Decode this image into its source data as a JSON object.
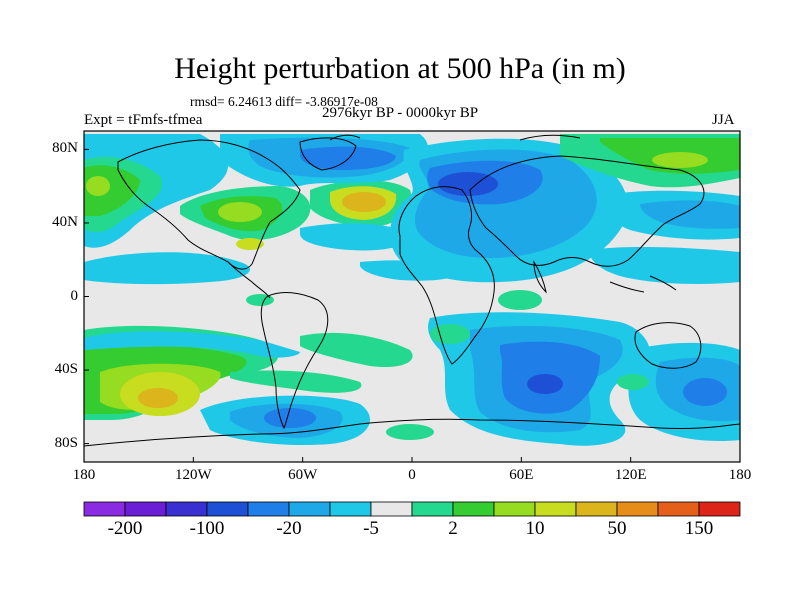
{
  "title": "Height perturbation at 500 hPa (in m)",
  "stats": "rmsd= 6.24613 diff= -3.86917e-08",
  "experiment": "Expt = tFmfs-tfmea",
  "period": "2976kyr BP - 0000kyr BP",
  "season": "JJA",
  "lat_ticks": [
    "80N",
    "40N",
    "0",
    "40S",
    "80S"
  ],
  "lon_ticks": [
    "180",
    "120W",
    "60W",
    "0",
    "60E",
    "120E",
    "180"
  ],
  "colorbar": {
    "labels": [
      "-200",
      "-100",
      "-20",
      "-5",
      "2",
      "10",
      "50",
      "150"
    ],
    "colors": [
      "#8a2be2",
      "#6a1fd6",
      "#3a2fd0",
      "#1e50d6",
      "#1f7ee8",
      "#1fa8e8",
      "#20c8e8",
      "#e8e8e8",
      "#24d890",
      "#34cc30",
      "#96dc20",
      "#c8dc20",
      "#dcb41c",
      "#e68c18",
      "#e4601a",
      "#dc2418"
    ]
  },
  "palette": {
    "neutral": "#e8e8e8",
    "ocean_map": "#e6e6e6"
  }
}
